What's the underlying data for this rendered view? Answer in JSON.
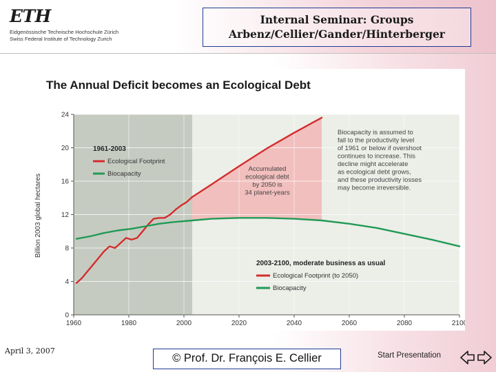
{
  "header": {
    "logo": {
      "wordmark": "ETH",
      "line1": "Eidgenössische Technische Hochschule Zürich",
      "line2": "Swiss Federal Institute of Technology Zurich"
    },
    "title_line1": "Internal Seminar: Groups",
    "title_line2": "Arbenz/Cellier/Gander/Hinterberger"
  },
  "footer": {
    "date": "April 3, 2007",
    "copyright": "© Prof. Dr. François E. Cellier",
    "start_label": "Start Presentation",
    "back_icon": "left-arrow-icon",
    "forward_icon": "right-arrow-icon"
  },
  "colors": {
    "footprint": "#d42c2c",
    "biocapacity": "#1f9a55",
    "history_shade": "#c6cbc1",
    "debt_fill": "#f2b6b6",
    "frame_border": "#1f3a93"
  },
  "chart_data": {
    "type": "line",
    "title": "The Annual Deficit becomes an Ecological Debt",
    "ylabel": "Billion 2003 global hectares",
    "xlabel": "",
    "xlim": [
      1960,
      2100
    ],
    "ylim": [
      0,
      24
    ],
    "x_ticks": [
      1960,
      1980,
      2000,
      2020,
      2040,
      2060,
      2080,
      2100
    ],
    "y_ticks": [
      0,
      4,
      8,
      12,
      16,
      20,
      24
    ],
    "grid": true,
    "shaded_period": [
      1961,
      2003
    ],
    "legend_historic": {
      "title": "1961-2003",
      "items": [
        "Ecological Footprint",
        "Biocapacity"
      ]
    },
    "legend_projection": {
      "title": "2003-2100, moderate business as usual",
      "items": [
        "Ecological Footprint (to 2050)",
        "Biocapacity"
      ]
    },
    "annotation_debt": [
      "Accumulated",
      "ecological debt",
      "by 2050 is",
      "34 planet-years"
    ],
    "annotation_biocapacity": [
      "Biocapacity is assumed to",
      "fall to the productivity level",
      "of 1961 or below if overshoot",
      "continues to increase. This",
      "decline might accelerate",
      "as ecological debt grows,",
      "and these productivity losses",
      "may become irreversible."
    ],
    "series": [
      {
        "name": "Ecological Footprint",
        "period": "1961-2003",
        "x": [
          1961,
          1963,
          1965,
          1967,
          1969,
          1971,
          1973,
          1975,
          1977,
          1979,
          1981,
          1983,
          1985,
          1987,
          1989,
          1991,
          1993,
          1995,
          1997,
          1999,
          2001,
          2003
        ],
        "values": [
          3.8,
          4.4,
          5.2,
          6.0,
          6.8,
          7.6,
          8.2,
          8.0,
          8.6,
          9.2,
          9.0,
          9.2,
          10.0,
          10.8,
          11.5,
          11.6,
          11.6,
          12.0,
          12.6,
          13.1,
          13.5,
          14.1
        ]
      },
      {
        "name": "Biocapacity",
        "period": "1961-2003",
        "x": [
          1961,
          1966,
          1971,
          1976,
          1981,
          1986,
          1991,
          1996,
          2003
        ],
        "values": [
          9.1,
          9.4,
          9.8,
          10.1,
          10.3,
          10.6,
          10.9,
          11.1,
          11.3
        ]
      },
      {
        "name": "Ecological Footprint (to 2050)",
        "period": "2003-2050",
        "x": [
          2003,
          2010,
          2020,
          2030,
          2040,
          2050
        ],
        "values": [
          14.1,
          15.6,
          17.8,
          19.9,
          21.8,
          23.6
        ]
      },
      {
        "name": "Biocapacity",
        "period": "2003-2100",
        "x": [
          2003,
          2010,
          2020,
          2030,
          2040,
          2050,
          2060,
          2070,
          2080,
          2090,
          2100
        ],
        "values": [
          11.3,
          11.5,
          11.6,
          11.6,
          11.5,
          11.3,
          10.9,
          10.4,
          9.7,
          9.0,
          8.2
        ]
      }
    ]
  }
}
